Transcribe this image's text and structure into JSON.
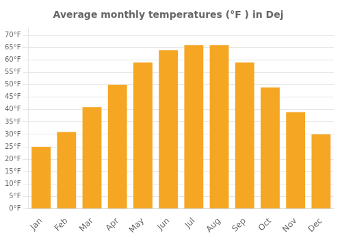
{
  "chart_data": {
    "type": "bar",
    "title": "Average monthly temperatures (°F ) in Dej",
    "categories": [
      "Jan",
      "Feb",
      "Mar",
      "Apr",
      "May",
      "Jun",
      "Jul",
      "Aug",
      "Sep",
      "Oct",
      "Nov",
      "Dec"
    ],
    "values": [
      25,
      31,
      41,
      50,
      59,
      64,
      66,
      66,
      59,
      49,
      39,
      30
    ],
    "color": "#F5A623",
    "ylim": [
      0,
      73
    ],
    "yticks": [
      {
        "value": 0,
        "label": "0°F"
      },
      {
        "value": 5,
        "label": "5°F"
      },
      {
        "value": 10,
        "label": "10°F"
      },
      {
        "value": 15,
        "label": "15°F"
      },
      {
        "value": 20,
        "label": "20°F"
      },
      {
        "value": 25,
        "label": "25°F"
      },
      {
        "value": 30,
        "label": "30°F"
      },
      {
        "value": 35,
        "label": "35°F"
      },
      {
        "value": 40,
        "label": "40°F"
      },
      {
        "value": 45,
        "label": "45°F"
      },
      {
        "value": 50,
        "label": "50°F"
      },
      {
        "value": 55,
        "label": "55°F"
      },
      {
        "value": 60,
        "label": "60°F"
      },
      {
        "value": 65,
        "label": "65°F"
      },
      {
        "value": 70,
        "label": "70°F"
      }
    ],
    "grid": true
  }
}
